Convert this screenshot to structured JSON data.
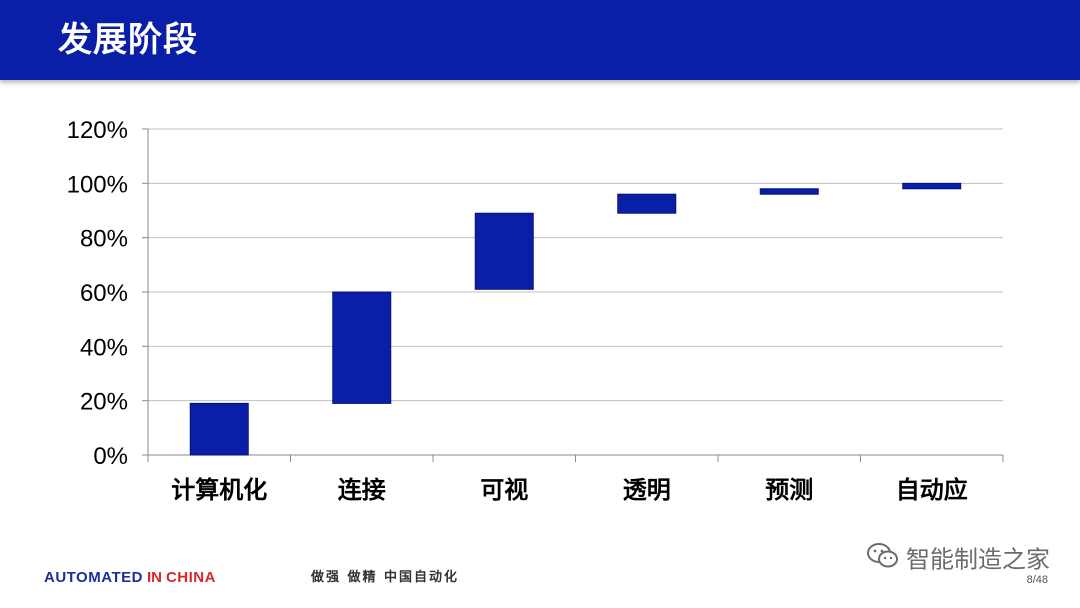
{
  "header": {
    "title": "发展阶段"
  },
  "colors": {
    "header_bg": "#0a1fa8",
    "bar": "#0a1fa8",
    "grid": "#bfbfbf",
    "axis": "#888888"
  },
  "chart_data": {
    "type": "bar",
    "subtype": "waterfall",
    "categories": [
      "计算机化",
      "连接",
      "可视",
      "透明",
      "预测",
      "自动应"
    ],
    "ranges": [
      [
        0,
        19
      ],
      [
        19,
        60
      ],
      [
        61,
        89
      ],
      [
        89,
        96
      ],
      [
        96,
        98
      ],
      [
        98,
        100
      ]
    ],
    "ylim": [
      0,
      120
    ],
    "yticks": [
      0,
      20,
      40,
      60,
      80,
      100,
      120
    ],
    "ytick_labels": [
      "0%",
      "20%",
      "40%",
      "60%",
      "80%",
      "100%",
      "120%"
    ],
    "grid": true,
    "legend": "none"
  },
  "footer": {
    "brand_automated": "AUTOMATED",
    "brand_in": "IN",
    "brand_china": "CHINA",
    "slogan": "做强 做精 中国自动化",
    "watermark": "智能制造之家",
    "watermark_icon": "wechat-icon",
    "page": "8/48"
  }
}
